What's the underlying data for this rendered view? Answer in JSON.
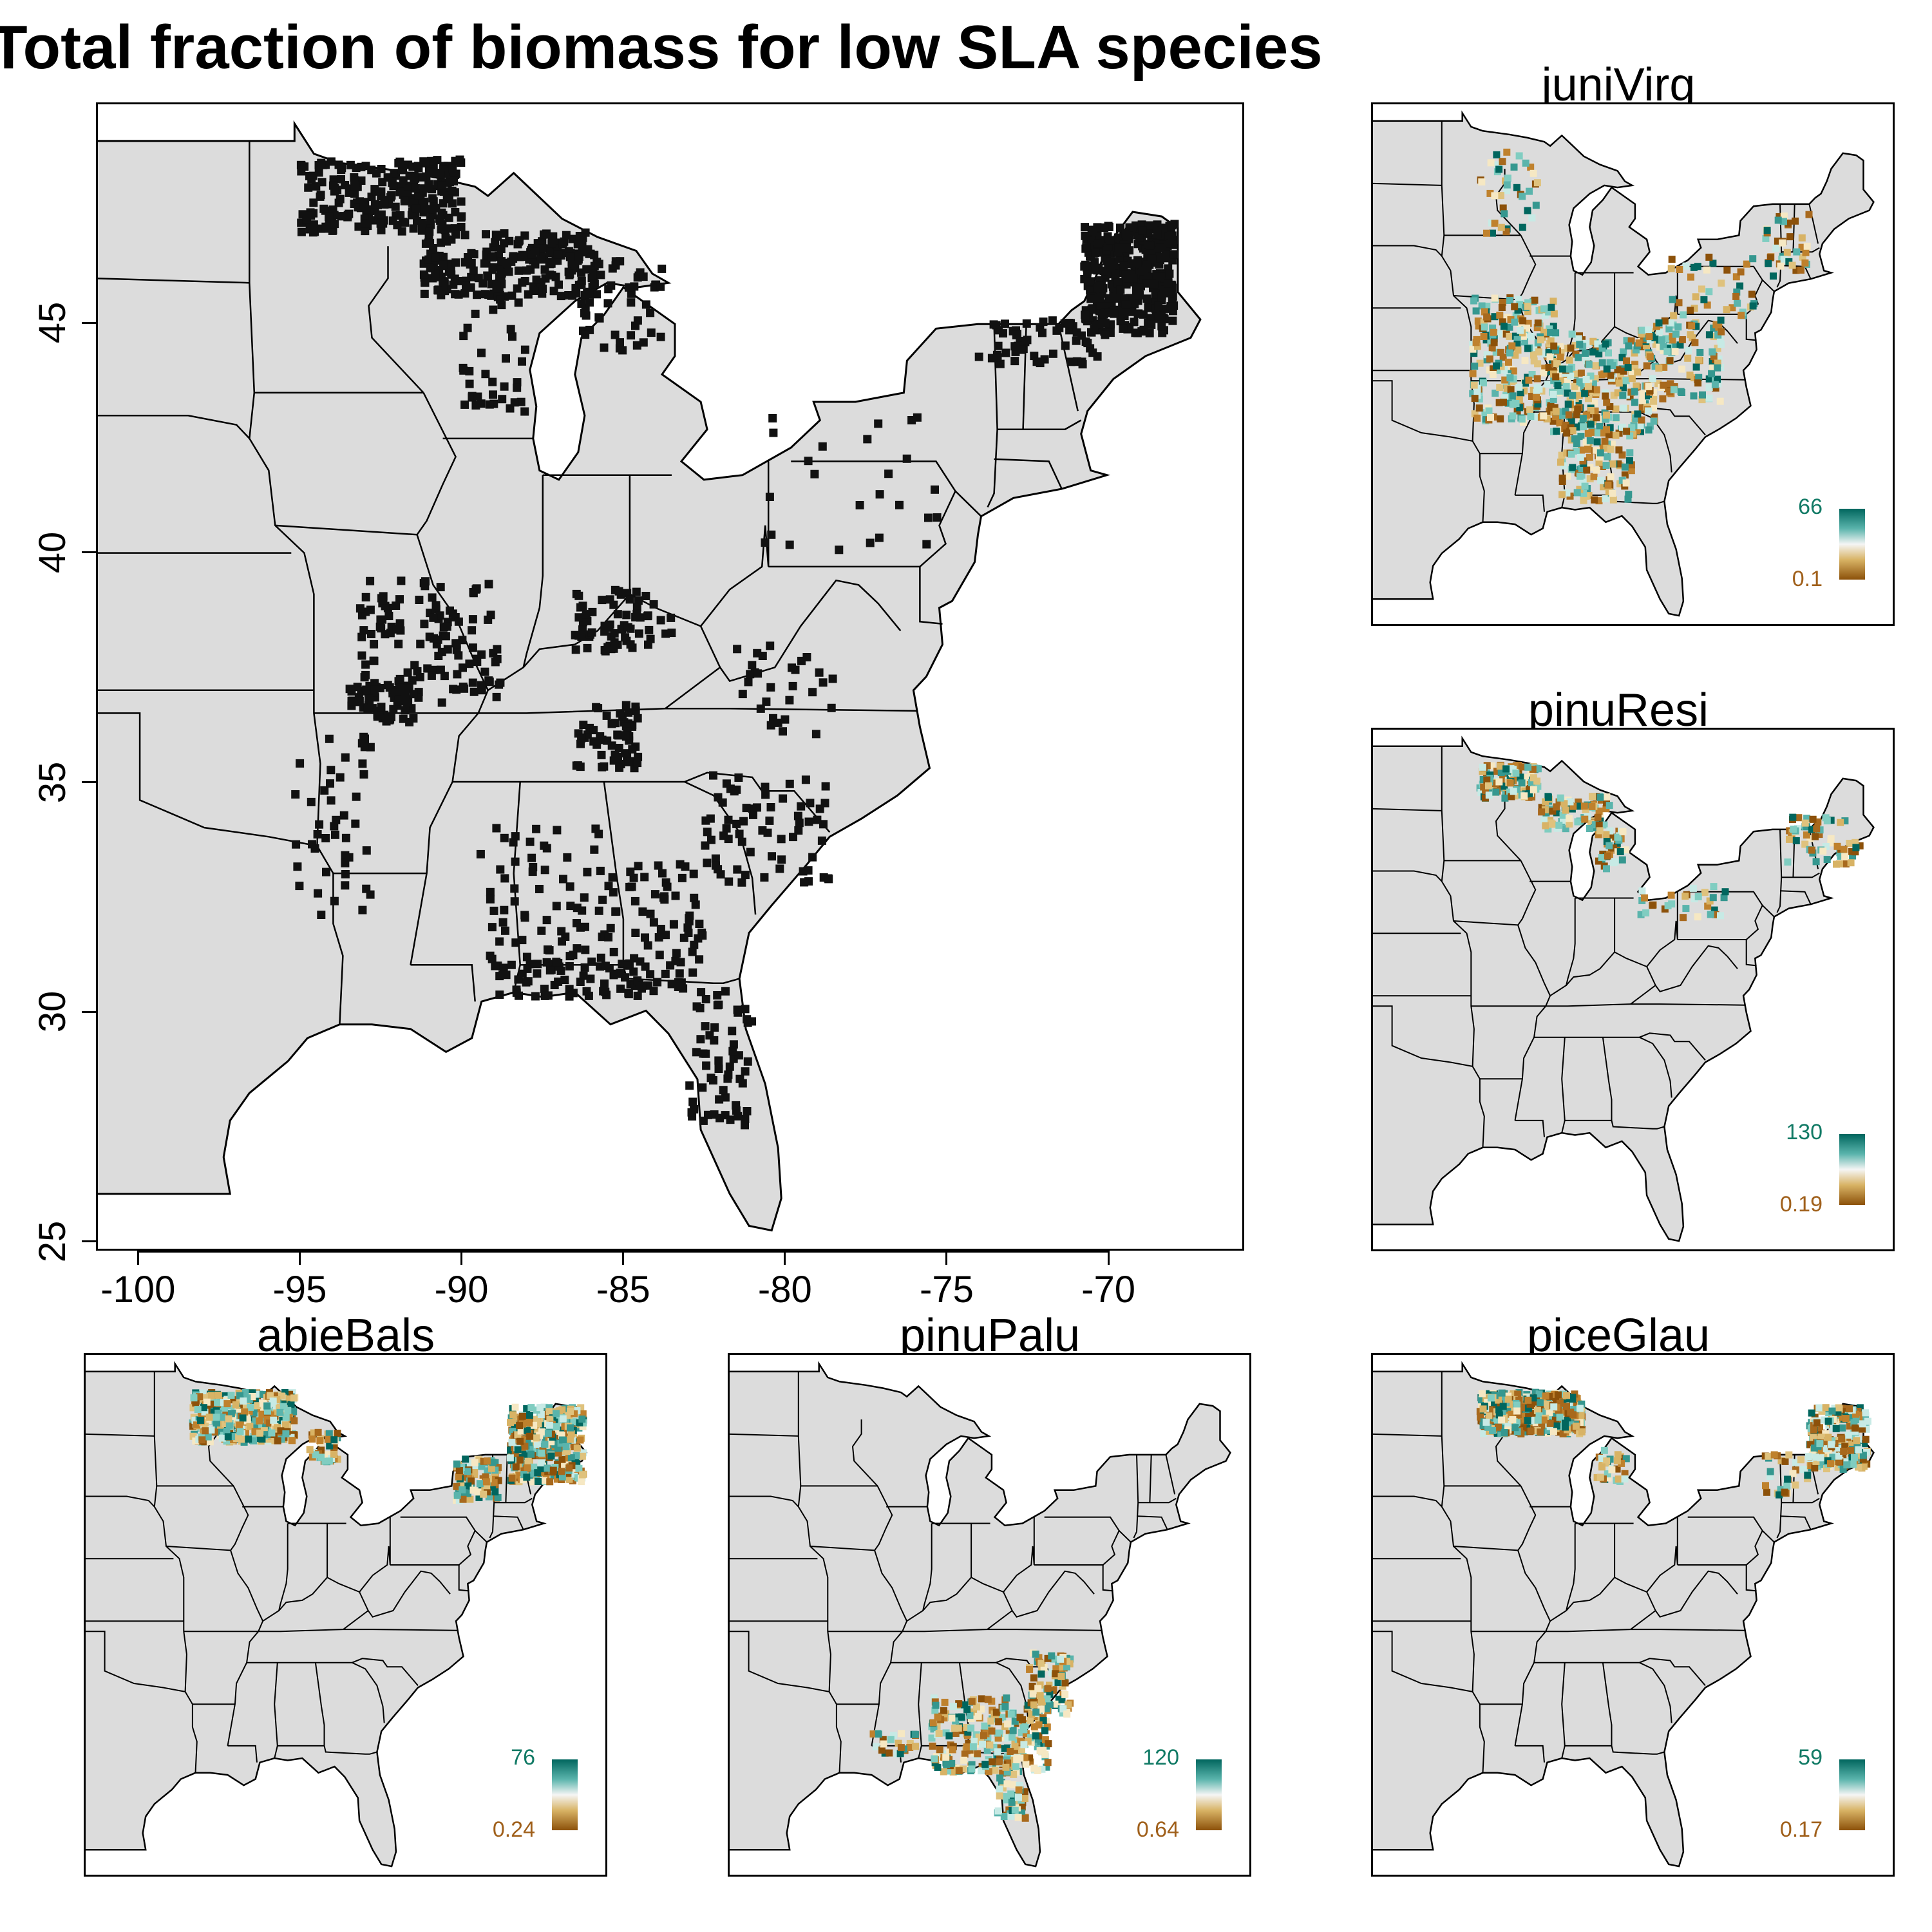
{
  "figure": {
    "title": "Total fraction of biomass for low SLA species",
    "x_ticks": [
      "-100",
      "-95",
      "-90",
      "-85",
      "-80",
      "-75",
      "-70"
    ],
    "y_ticks": [
      "25",
      "30",
      "35",
      "40",
      "45"
    ]
  },
  "colors": {
    "land": "#dcdcdc",
    "borders": "#000000",
    "main_points": "#111111",
    "legend_high": "#01665e",
    "legend_mid": "#f5f5f5",
    "legend_low": "#8c510a"
  },
  "chart_data": [
    {
      "type": "scatter",
      "title": "Total fraction of biomass for low SLA species",
      "x_ticks": [
        -100,
        -95,
        -90,
        -85,
        -80,
        -75,
        -70
      ],
      "y_ticks": [
        25,
        30,
        35,
        40,
        45
      ],
      "xlim": [
        -101.3,
        -65.8
      ],
      "ylim": [
        24.8,
        49.8
      ],
      "description_series": "plot locations with low SLA species across the eastern United States"
    },
    {
      "type": "map",
      "title": "juniVirg",
      "legend": {
        "max": "66",
        "min": "0.1"
      }
    },
    {
      "type": "map",
      "title": "pinuResi",
      "legend": {
        "max": "130",
        "min": "0.19"
      }
    },
    {
      "type": "map",
      "title": "abieBals",
      "legend": {
        "max": "76",
        "min": "0.24"
      }
    },
    {
      "type": "map",
      "title": "pinuPalu",
      "legend": {
        "max": "120",
        "min": "0.64"
      }
    },
    {
      "type": "map",
      "title": "piceGlau",
      "legend": {
        "max": "59",
        "min": "0.17"
      }
    }
  ]
}
